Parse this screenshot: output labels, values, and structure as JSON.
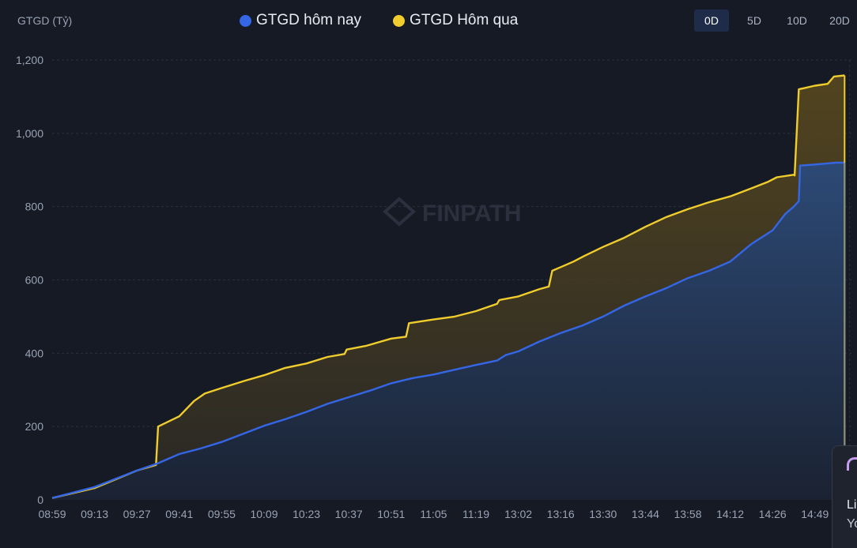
{
  "header": {
    "unit_label": "GTGD (Tỷ)",
    "legend": [
      {
        "label": "GTGD hôm nay",
        "color": "#3466e6"
      },
      {
        "label": "GTGD Hôm qua",
        "color": "#f0cd2c"
      }
    ],
    "range_tabs": [
      {
        "label": "0D",
        "active": true
      },
      {
        "label": "5D",
        "active": false
      },
      {
        "label": "10D",
        "active": false
      },
      {
        "label": "20D",
        "active": false
      }
    ]
  },
  "watermark": "FINPATH",
  "side_card": {
    "line1": "Li",
    "line2": "Yo"
  },
  "chart_data": {
    "type": "area",
    "xlabel": "",
    "ylabel": "GTGD (Tỷ)",
    "ylim": [
      0,
      1200
    ],
    "yticks": [
      0,
      200,
      400,
      600,
      800,
      1000,
      1200
    ],
    "ytick_labels": [
      "0",
      "200",
      "400",
      "600",
      "800",
      "1,000",
      "1,200"
    ],
    "categories": [
      "08:59",
      "09:13",
      "09:27",
      "09:41",
      "09:55",
      "10:09",
      "10:23",
      "10:37",
      "10:51",
      "11:05",
      "11:19",
      "13:02",
      "13:16",
      "13:30",
      "13:44",
      "13:58",
      "14:12",
      "14:26",
      "14:49"
    ],
    "x_positions": [
      0,
      1,
      2,
      3,
      4,
      5,
      6,
      7,
      8,
      9,
      10,
      11,
      12,
      13,
      14,
      15,
      16,
      17,
      18
    ],
    "x_end": 18.8,
    "grid": true,
    "series": [
      {
        "name": "GTGD Hôm qua",
        "color": "#f0cd2c",
        "points": [
          [
            0,
            5
          ],
          [
            1,
            32
          ],
          [
            2,
            80
          ],
          [
            2.45,
            95
          ],
          [
            2.5,
            200
          ],
          [
            3,
            228
          ],
          [
            3.35,
            270
          ],
          [
            3.6,
            290
          ],
          [
            4,
            305
          ],
          [
            4.55,
            325
          ],
          [
            5,
            340
          ],
          [
            5.5,
            360
          ],
          [
            6,
            372
          ],
          [
            6.5,
            390
          ],
          [
            6.9,
            398
          ],
          [
            6.95,
            410
          ],
          [
            7.4,
            420
          ],
          [
            8,
            440
          ],
          [
            8.35,
            445
          ],
          [
            8.42,
            482
          ],
          [
            9,
            492
          ],
          [
            9.5,
            500
          ],
          [
            10,
            515
          ],
          [
            10.5,
            535
          ],
          [
            10.55,
            545
          ],
          [
            11,
            555
          ],
          [
            11.5,
            575
          ],
          [
            11.72,
            582
          ],
          [
            11.8,
            625
          ],
          [
            12,
            635
          ],
          [
            12.3,
            650
          ],
          [
            12.55,
            665
          ],
          [
            13,
            690
          ],
          [
            13.5,
            715
          ],
          [
            14,
            745
          ],
          [
            14.5,
            772
          ],
          [
            15,
            793
          ],
          [
            15.5,
            812
          ],
          [
            16,
            828
          ],
          [
            16.5,
            850
          ],
          [
            16.9,
            868
          ],
          [
            17.1,
            880
          ],
          [
            17.5,
            887
          ],
          [
            17.52,
            885
          ],
          [
            17.62,
            1120
          ],
          [
            18,
            1130
          ],
          [
            18.3,
            1135
          ],
          [
            18.45,
            1155
          ],
          [
            18.7,
            1158
          ]
        ]
      },
      {
        "name": "GTGD hôm nay",
        "color": "#3466e6",
        "points": [
          [
            0,
            5
          ],
          [
            1,
            35
          ],
          [
            2,
            80
          ],
          [
            2.5,
            100
          ],
          [
            3,
            125
          ],
          [
            3.5,
            140
          ],
          [
            4,
            158
          ],
          [
            4.5,
            180
          ],
          [
            5,
            202
          ],
          [
            5.5,
            220
          ],
          [
            6,
            240
          ],
          [
            6.5,
            262
          ],
          [
            7,
            280
          ],
          [
            7.5,
            298
          ],
          [
            8,
            318
          ],
          [
            8.5,
            332
          ],
          [
            9,
            342
          ],
          [
            9.5,
            355
          ],
          [
            10,
            368
          ],
          [
            10.5,
            380
          ],
          [
            10.7,
            395
          ],
          [
            11,
            405
          ],
          [
            11.5,
            432
          ],
          [
            12,
            455
          ],
          [
            12.5,
            475
          ],
          [
            13,
            500
          ],
          [
            13.5,
            530
          ],
          [
            14,
            555
          ],
          [
            14.5,
            578
          ],
          [
            15,
            605
          ],
          [
            15.5,
            625
          ],
          [
            16,
            650
          ],
          [
            16.5,
            698
          ],
          [
            17,
            735
          ],
          [
            17.3,
            780
          ],
          [
            17.5,
            800
          ],
          [
            17.62,
            815
          ],
          [
            17.65,
            912
          ],
          [
            18,
            915
          ],
          [
            18.3,
            918
          ],
          [
            18.5,
            920
          ],
          [
            18.7,
            920
          ]
        ]
      }
    ]
  }
}
